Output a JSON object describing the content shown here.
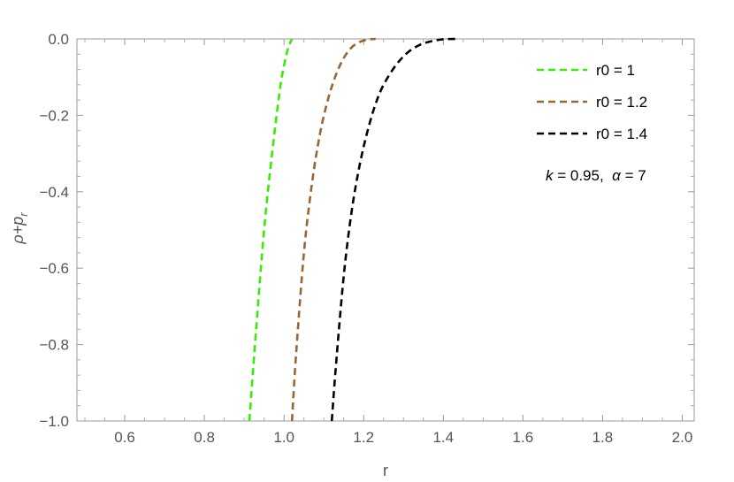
{
  "chart_data": {
    "type": "line",
    "xlabel": "r",
    "ylabel_base": "ρ+p",
    "ylabel_sub": "r",
    "xlim": [
      0.48,
      2.03
    ],
    "ylim": [
      -1.0,
      0.0
    ],
    "x_ticks": [
      0.6,
      0.8,
      1.0,
      1.2,
      1.4,
      1.6,
      1.8,
      2.0
    ],
    "x_tick_labels": [
      "0.6",
      "0.8",
      "1.0",
      "1.2",
      "1.4",
      "1.6",
      "1.8",
      "2.0"
    ],
    "y_ticks": [
      0.0,
      -0.2,
      -0.4,
      -0.6,
      -0.8,
      -1.0
    ],
    "y_tick_labels": [
      "0.0",
      "−0.2",
      "−0.4",
      "−0.6",
      "−0.8",
      "−1.0"
    ],
    "legend_position": "top-right",
    "grid": false,
    "annotation": {
      "k_label": "k",
      "k_text": " = 0.95,  ",
      "alpha_label": "α",
      "alpha_text": " = 7"
    },
    "series": [
      {
        "name": "r0 = 1",
        "color": "#33ee00",
        "x": [
          0.913,
          0.93,
          0.95,
          0.97,
          0.99,
          1.0,
          1.01,
          1.02
        ],
        "y": [
          -1.0,
          -0.76,
          -0.5,
          -0.3,
          -0.13,
          -0.07,
          -0.025,
          0.0
        ]
      },
      {
        "name": "r0 = 1.2",
        "color": "#996633",
        "x": [
          1.02,
          1.03,
          1.05,
          1.07,
          1.09,
          1.11,
          1.13,
          1.15,
          1.17,
          1.19,
          1.21,
          1.23
        ],
        "y": [
          -1.0,
          -0.83,
          -0.56,
          -0.38,
          -0.25,
          -0.16,
          -0.095,
          -0.05,
          -0.022,
          -0.008,
          -0.002,
          0.0
        ]
      },
      {
        "name": "r0 = 1.4",
        "color": "#000000",
        "x": [
          1.12,
          1.13,
          1.15,
          1.17,
          1.19,
          1.21,
          1.23,
          1.25,
          1.28,
          1.31,
          1.34,
          1.37,
          1.4,
          1.44
        ],
        "y": [
          -1.0,
          -0.86,
          -0.62,
          -0.45,
          -0.33,
          -0.24,
          -0.17,
          -0.12,
          -0.07,
          -0.036,
          -0.016,
          -0.006,
          -0.001,
          0.0
        ]
      }
    ]
  }
}
